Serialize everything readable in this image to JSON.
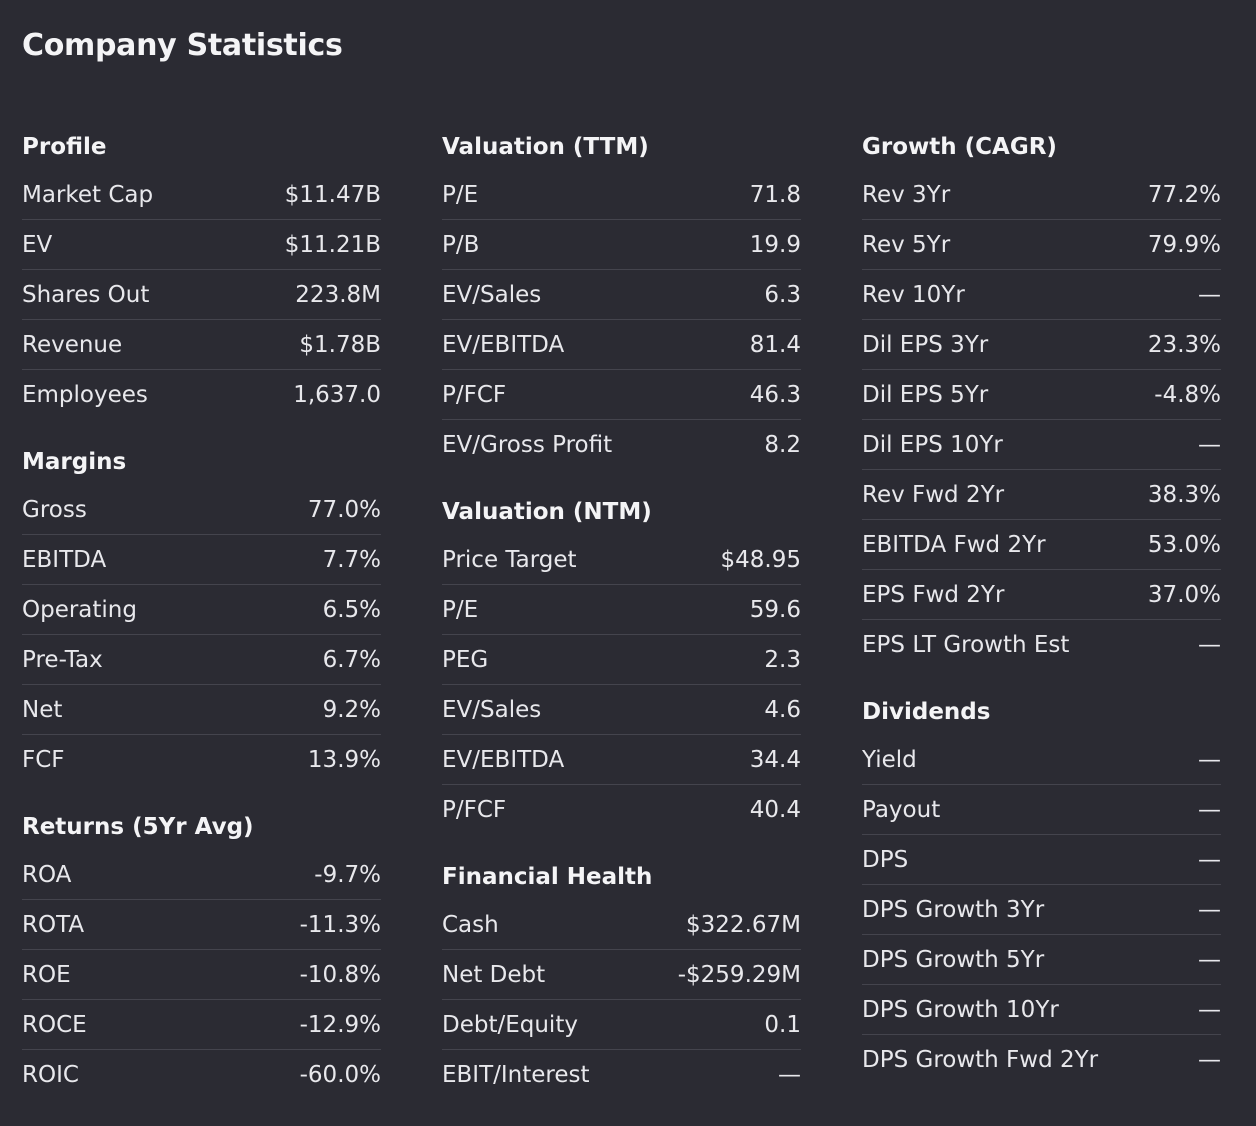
{
  "page": {
    "title": "Company Statistics"
  },
  "columns": [
    {
      "sections": [
        {
          "title": "Profile",
          "rows": [
            {
              "label": "Market Cap",
              "value": "$11.47B"
            },
            {
              "label": "EV",
              "value": "$11.21B"
            },
            {
              "label": "Shares Out",
              "value": "223.8M"
            },
            {
              "label": "Revenue",
              "value": "$1.78B"
            },
            {
              "label": "Employees",
              "value": "1,637.0"
            }
          ]
        },
        {
          "title": "Margins",
          "rows": [
            {
              "label": "Gross",
              "value": "77.0%"
            },
            {
              "label": "EBITDA",
              "value": "7.7%"
            },
            {
              "label": "Operating",
              "value": "6.5%"
            },
            {
              "label": "Pre-Tax",
              "value": "6.7%"
            },
            {
              "label": "Net",
              "value": "9.2%"
            },
            {
              "label": "FCF",
              "value": "13.9%"
            }
          ]
        },
        {
          "title": "Returns (5Yr Avg)",
          "rows": [
            {
              "label": "ROA",
              "value": "-9.7%"
            },
            {
              "label": "ROTA",
              "value": "-11.3%"
            },
            {
              "label": "ROE",
              "value": "-10.8%"
            },
            {
              "label": "ROCE",
              "value": "-12.9%"
            },
            {
              "label": "ROIC",
              "value": "-60.0%"
            }
          ]
        }
      ]
    },
    {
      "sections": [
        {
          "title": "Valuation (TTM)",
          "rows": [
            {
              "label": "P/E",
              "value": "71.8"
            },
            {
              "label": "P/B",
              "value": "19.9"
            },
            {
              "label": "EV/Sales",
              "value": "6.3"
            },
            {
              "label": "EV/EBITDA",
              "value": "81.4"
            },
            {
              "label": "P/FCF",
              "value": "46.3"
            },
            {
              "label": "EV/Gross Profit",
              "value": "8.2"
            }
          ]
        },
        {
          "title": "Valuation (NTM)",
          "rows": [
            {
              "label": "Price Target",
              "value": "$48.95"
            },
            {
              "label": "P/E",
              "value": "59.6"
            },
            {
              "label": "PEG",
              "value": "2.3"
            },
            {
              "label": "EV/Sales",
              "value": "4.6"
            },
            {
              "label": "EV/EBITDA",
              "value": "34.4"
            },
            {
              "label": "P/FCF",
              "value": "40.4"
            }
          ]
        },
        {
          "title": "Financial Health",
          "rows": [
            {
              "label": "Cash",
              "value": "$322.67M"
            },
            {
              "label": "Net Debt",
              "value": "-$259.29M"
            },
            {
              "label": "Debt/Equity",
              "value": "0.1"
            },
            {
              "label": "EBIT/Interest",
              "value": "—"
            }
          ]
        }
      ]
    },
    {
      "sections": [
        {
          "title": "Growth (CAGR)",
          "rows": [
            {
              "label": "Rev 3Yr",
              "value": "77.2%"
            },
            {
              "label": "Rev 5Yr",
              "value": "79.9%"
            },
            {
              "label": "Rev 10Yr",
              "value": "—"
            },
            {
              "label": "Dil EPS 3Yr",
              "value": "23.3%"
            },
            {
              "label": "Dil EPS 5Yr",
              "value": "-4.8%"
            },
            {
              "label": "Dil EPS 10Yr",
              "value": "—"
            },
            {
              "label": "Rev Fwd 2Yr",
              "value": "38.3%"
            },
            {
              "label": "EBITDA Fwd 2Yr",
              "value": "53.0%"
            },
            {
              "label": "EPS Fwd 2Yr",
              "value": "37.0%"
            },
            {
              "label": "EPS LT Growth Est",
              "value": "—"
            }
          ]
        },
        {
          "title": "Dividends",
          "rows": [
            {
              "label": "Yield",
              "value": "—"
            },
            {
              "label": "Payout",
              "value": "—"
            },
            {
              "label": "DPS",
              "value": "—"
            },
            {
              "label": "DPS Growth 3Yr",
              "value": "—"
            },
            {
              "label": "DPS Growth 5Yr",
              "value": "—"
            },
            {
              "label": "DPS Growth 10Yr",
              "value": "—"
            },
            {
              "label": "DPS Growth Fwd 2Yr",
              "value": "—"
            }
          ]
        }
      ]
    }
  ]
}
